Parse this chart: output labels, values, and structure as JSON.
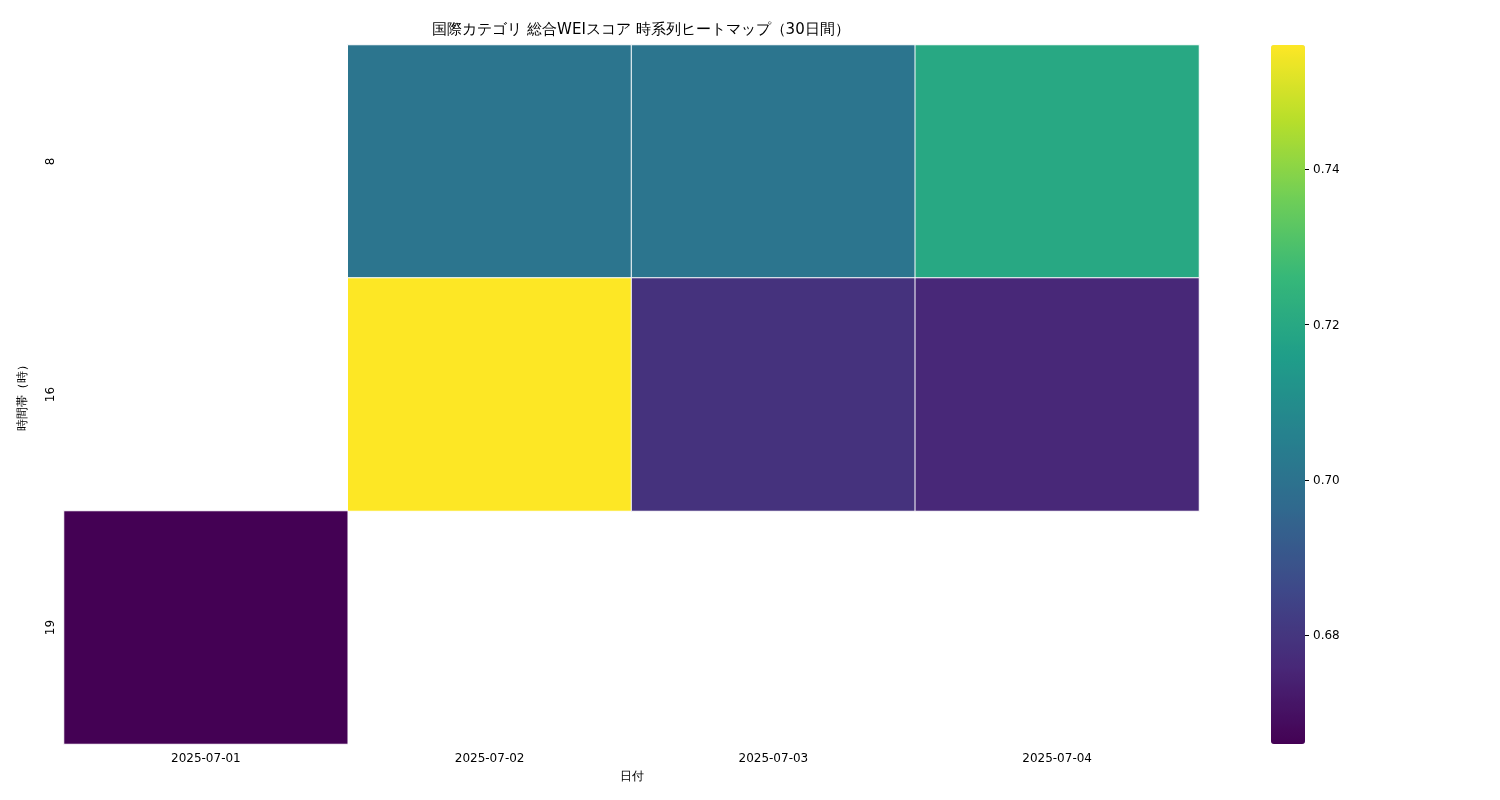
{
  "chart_data": {
    "type": "heatmap",
    "title": "国際カテゴリ 総合WEIスコア 時系列ヒートマップ（30日間）",
    "xlabel": "日付",
    "ylabel": "時間帯（時）",
    "categories": [
      "2025-07-01",
      "2025-07-02",
      "2025-07-03",
      "2025-07-04"
    ],
    "y_categories": [
      "8",
      "16",
      "19"
    ],
    "cells": [
      [
        null,
        0.701,
        0.701,
        0.72
      ],
      [
        null,
        0.756,
        0.679,
        0.676
      ],
      [
        0.666,
        null,
        null,
        null
      ]
    ],
    "clim": [
      0.666,
      0.756
    ],
    "cticks": [
      0.68,
      {
        "value": 0.7,
        "label": "0.70"
      },
      0.72,
      0.74
    ]
  }
}
